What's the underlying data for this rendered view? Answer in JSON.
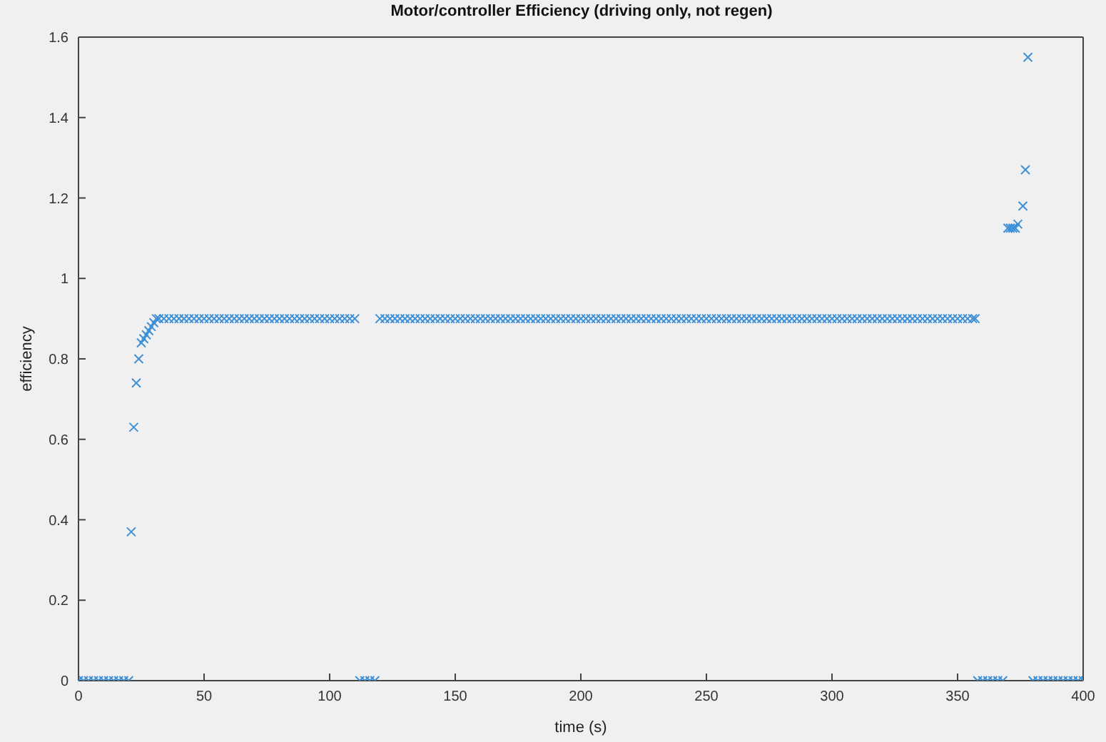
{
  "chart_data": {
    "type": "scatter",
    "title": "Motor/controller Efficiency (driving only, not regen)",
    "xlabel": "time (s)",
    "ylabel": "efficiency",
    "xlim": [
      0,
      400
    ],
    "xticks": [
      0,
      50,
      100,
      150,
      200,
      250,
      300,
      350,
      400
    ],
    "ylim": [
      0,
      1.6
    ],
    "yticks": [
      0,
      0.2,
      0.4,
      0.6,
      0.8,
      1,
      1.2,
      1.4,
      1.6
    ],
    "marker": "cross",
    "series": [
      {
        "color": "#3d8fd6",
        "x": [
          0,
          2,
          4,
          6,
          8,
          10,
          12,
          14,
          16,
          18,
          20,
          21,
          22,
          23,
          24,
          25,
          26,
          27,
          28,
          29,
          30,
          31,
          32,
          34,
          36,
          38,
          40,
          42,
          44,
          46,
          48,
          50,
          52,
          54,
          56,
          58,
          60,
          62,
          64,
          66,
          68,
          70,
          72,
          74,
          76,
          78,
          80,
          82,
          84,
          86,
          88,
          90,
          92,
          94,
          96,
          98,
          100,
          102,
          104,
          106,
          108,
          110,
          112,
          114,
          116,
          118,
          120,
          122,
          124,
          126,
          128,
          130,
          132,
          134,
          136,
          138,
          140,
          142,
          144,
          146,
          148,
          150,
          152,
          154,
          156,
          158,
          160,
          162,
          164,
          166,
          168,
          170,
          172,
          174,
          176,
          178,
          180,
          182,
          184,
          186,
          188,
          190,
          192,
          194,
          196,
          198,
          200,
          202,
          204,
          206,
          208,
          210,
          212,
          214,
          216,
          218,
          220,
          222,
          224,
          226,
          228,
          230,
          232,
          234,
          236,
          238,
          240,
          242,
          244,
          246,
          248,
          250,
          252,
          254,
          256,
          258,
          260,
          262,
          264,
          266,
          268,
          270,
          272,
          274,
          276,
          278,
          280,
          282,
          284,
          286,
          288,
          290,
          292,
          294,
          296,
          298,
          300,
          302,
          304,
          306,
          308,
          310,
          312,
          314,
          316,
          318,
          320,
          322,
          324,
          326,
          328,
          330,
          332,
          334,
          336,
          338,
          340,
          342,
          344,
          346,
          348,
          350,
          352,
          354,
          356,
          357,
          358,
          360,
          362,
          364,
          366,
          368,
          370,
          371,
          372,
          373,
          374,
          376,
          377,
          378,
          380,
          382,
          384,
          386,
          388,
          390,
          392,
          394,
          396,
          398,
          400
        ],
        "values": [
          0,
          0,
          0,
          0,
          0,
          0,
          0,
          0,
          0,
          0,
          0,
          0.37,
          0.63,
          0.74,
          0.8,
          0.84,
          0.85,
          0.86,
          0.87,
          0.88,
          0.89,
          0.9,
          0.9,
          0.9,
          0.9,
          0.9,
          0.9,
          0.9,
          0.9,
          0.9,
          0.9,
          0.9,
          0.9,
          0.9,
          0.9,
          0.9,
          0.9,
          0.9,
          0.9,
          0.9,
          0.9,
          0.9,
          0.9,
          0.9,
          0.9,
          0.9,
          0.9,
          0.9,
          0.9,
          0.9,
          0.9,
          0.9,
          0.9,
          0.9,
          0.9,
          0.9,
          0.9,
          0.9,
          0.9,
          0.9,
          0.9,
          0.9,
          0,
          0,
          0,
          0,
          0.9,
          0.9,
          0.9,
          0.9,
          0.9,
          0.9,
          0.9,
          0.9,
          0.9,
          0.9,
          0.9,
          0.9,
          0.9,
          0.9,
          0.9,
          0.9,
          0.9,
          0.9,
          0.9,
          0.9,
          0.9,
          0.9,
          0.9,
          0.9,
          0.9,
          0.9,
          0.9,
          0.9,
          0.9,
          0.9,
          0.9,
          0.9,
          0.9,
          0.9,
          0.9,
          0.9,
          0.9,
          0.9,
          0.9,
          0.9,
          0.9,
          0.9,
          0.9,
          0.9,
          0.9,
          0.9,
          0.9,
          0.9,
          0.9,
          0.9,
          0.9,
          0.9,
          0.9,
          0.9,
          0.9,
          0.9,
          0.9,
          0.9,
          0.9,
          0.9,
          0.9,
          0.9,
          0.9,
          0.9,
          0.9,
          0.9,
          0.9,
          0.9,
          0.9,
          0.9,
          0.9,
          0.9,
          0.9,
          0.9,
          0.9,
          0.9,
          0.9,
          0.9,
          0.9,
          0.9,
          0.9,
          0.9,
          0.9,
          0.9,
          0.9,
          0.9,
          0.9,
          0.9,
          0.9,
          0.9,
          0.9,
          0.9,
          0.9,
          0.9,
          0.9,
          0.9,
          0.9,
          0.9,
          0.9,
          0.9,
          0.9,
          0.9,
          0.9,
          0.9,
          0.9,
          0.9,
          0.9,
          0.9,
          0.9,
          0.9,
          0.9,
          0.9,
          0.9,
          0.9,
          0.9,
          0.9,
          0.9,
          0.9,
          0.9,
          0.9,
          0,
          0,
          0,
          0,
          0,
          0,
          1.125,
          1.125,
          1.125,
          1.125,
          1.135,
          1.18,
          1.27,
          1.55,
          0,
          0,
          0,
          0,
          0,
          0,
          0,
          0,
          0,
          0,
          0
        ]
      }
    ]
  }
}
